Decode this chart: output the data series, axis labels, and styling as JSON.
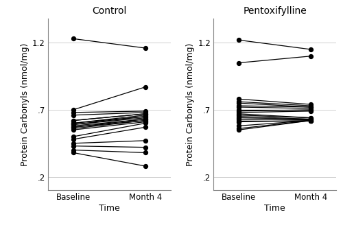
{
  "control": {
    "title": "Control",
    "baseline": [
      1.23,
      0.7,
      0.68,
      0.66,
      0.62,
      0.62,
      0.6,
      0.6,
      0.59,
      0.59,
      0.58,
      0.57,
      0.57,
      0.56,
      0.55,
      0.5,
      0.48,
      0.45,
      0.43,
      0.4,
      0.38
    ],
    "month4": [
      1.16,
      0.87,
      0.69,
      0.68,
      0.67,
      0.67,
      0.66,
      0.65,
      0.65,
      0.64,
      0.63,
      0.63,
      0.62,
      0.62,
      0.61,
      0.6,
      0.57,
      0.47,
      0.42,
      0.38,
      0.28
    ]
  },
  "pentoxifylline": {
    "title": "Pentoxifylline",
    "baseline": [
      1.22,
      1.05,
      0.78,
      0.76,
      0.75,
      0.73,
      0.72,
      0.7,
      0.69,
      0.68,
      0.67,
      0.66,
      0.65,
      0.64,
      0.63,
      0.62,
      0.61,
      0.58,
      0.56,
      0.55
    ],
    "month4": [
      1.15,
      1.1,
      0.74,
      0.73,
      0.72,
      0.72,
      0.71,
      0.7,
      0.7,
      0.69,
      0.64,
      0.64,
      0.63,
      0.63,
      0.63,
      0.62,
      0.62,
      0.62,
      0.62,
      0.62
    ]
  },
  "ylabel": "Protein Carbonyls (nmol/mg)",
  "xlabel": "Time",
  "xtick_labels": [
    "Baseline",
    "Month 4"
  ],
  "ylim": [
    0.1,
    1.38
  ],
  "yticks": [
    0.2,
    0.7,
    1.2
  ],
  "ytick_labels": [
    ".2",
    ".7",
    "1.2"
  ],
  "hgrid_vals": [
    0.2,
    0.7,
    1.2
  ],
  "line_color": "black",
  "dot_color": "black",
  "dot_size": 18,
  "line_width": 0.9,
  "bg_color": "white",
  "title_fontsize": 10,
  "label_fontsize": 9,
  "tick_fontsize": 8.5,
  "grid_color": "#c8c8c8",
  "grid_lw": 0.6,
  "spine_color": "#888888"
}
